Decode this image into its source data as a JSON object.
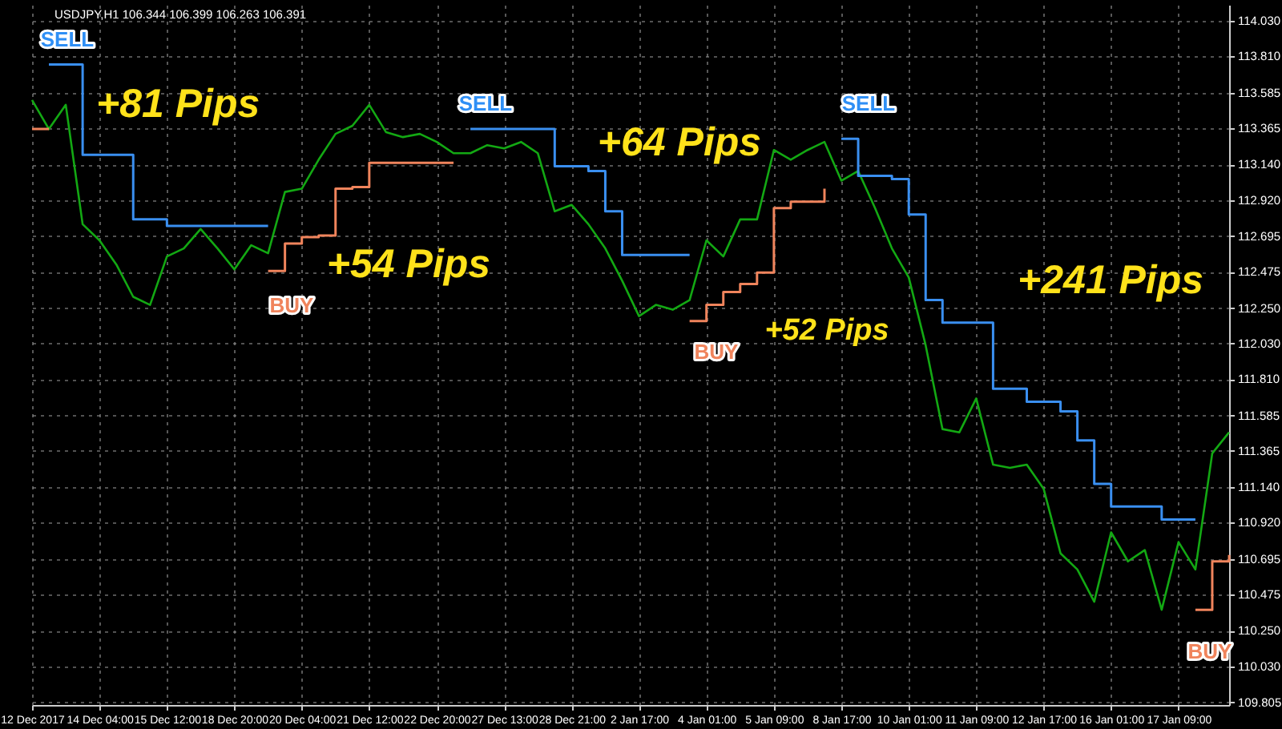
{
  "chart_data": {
    "type": "line",
    "title": "USDJPY,H1 106.344 106.399 106.263 106.391",
    "categories": [
      "12 Dec 2017",
      null,
      null,
      null,
      "14 Dec 04:00",
      null,
      null,
      null,
      "15 Dec 12:00",
      null,
      null,
      null,
      "18 Dec 20:00",
      null,
      null,
      null,
      "20 Dec 04:00",
      null,
      null,
      null,
      "21 Dec 12:00",
      null,
      null,
      null,
      "22 Dec 20:00",
      null,
      null,
      null,
      "27 Dec 13:00",
      null,
      null,
      null,
      "28 Dec 21:00",
      null,
      null,
      null,
      "2 Jan 17:00",
      null,
      null,
      null,
      "4 Jan 01:00",
      null,
      null,
      null,
      "5 Jan 09:00",
      null,
      null,
      null,
      "8 Jan 17:00",
      null,
      null,
      null,
      "10 Jan 01:00",
      null,
      null,
      null,
      "11 Jan 09:00",
      null,
      null,
      null,
      "12 Jan 17:00",
      null,
      null,
      null,
      "16 Jan 01:00",
      null,
      null,
      null,
      "17 Jan 09:00",
      null,
      null,
      null
    ],
    "series": [
      {
        "type": "line",
        "color": "#13a813",
        "values": [
          113.54,
          113.36,
          113.51,
          112.77,
          112.67,
          112.52,
          112.32,
          112.27,
          112.57,
          112.62,
          112.74,
          112.62,
          112.49,
          112.64,
          112.59,
          112.97,
          112.99,
          113.17,
          113.33,
          113.38,
          113.51,
          113.34,
          113.31,
          113.33,
          113.28,
          113.21,
          113.21,
          113.26,
          113.24,
          113.28,
          113.21,
          112.85,
          112.89,
          112.77,
          112.62,
          112.42,
          112.2,
          112.27,
          112.24,
          112.3,
          112.67,
          112.57,
          112.8,
          112.8,
          113.23,
          113.17,
          113.23,
          113.28,
          113.04,
          113.1,
          112.87,
          112.62,
          112.44,
          112.02,
          111.5,
          111.48,
          111.69,
          111.28,
          111.26,
          111.28,
          111.13,
          110.73,
          110.63,
          110.43,
          110.86,
          110.68,
          110.75,
          110.38,
          110.8,
          110.63,
          111.35,
          111.48
        ]
      },
      {
        "type": "step",
        "color": "#3a8ff0",
        "values": [
          null,
          113.76,
          113.76,
          113.2,
          113.2,
          113.2,
          112.8,
          112.8,
          112.76,
          112.76,
          112.76,
          112.76,
          112.76,
          112.76,
          112.76,
          null,
          null,
          null,
          null,
          null,
          null,
          null,
          null,
          null,
          null,
          null,
          113.36,
          113.36,
          113.36,
          113.36,
          113.36,
          113.13,
          113.13,
          113.1,
          112.85,
          112.58,
          112.58,
          112.58,
          112.58,
          112.58,
          null,
          null,
          null,
          null,
          null,
          null,
          null,
          null,
          113.3,
          113.07,
          113.07,
          113.05,
          112.83,
          112.3,
          112.16,
          112.16,
          112.16,
          111.75,
          111.75,
          111.67,
          111.67,
          111.61,
          111.43,
          111.16,
          111.02,
          111.02,
          111.02,
          110.94,
          110.94,
          110.94,
          null,
          null
        ]
      },
      {
        "type": "step",
        "color": "#f0845c",
        "values": [
          113.36,
          113.36,
          null,
          null,
          null,
          null,
          null,
          null,
          null,
          null,
          null,
          null,
          null,
          null,
          112.48,
          112.65,
          112.69,
          112.7,
          112.99,
          113.0,
          113.15,
          113.15,
          113.15,
          113.15,
          113.15,
          113.15,
          null,
          null,
          null,
          null,
          null,
          null,
          null,
          null,
          null,
          null,
          null,
          null,
          null,
          112.17,
          112.27,
          112.35,
          112.4,
          112.47,
          112.87,
          112.91,
          112.91,
          112.99,
          null,
          null,
          null,
          null,
          null,
          null,
          null,
          null,
          null,
          null,
          null,
          null,
          null,
          null,
          null,
          null,
          null,
          null,
          null,
          null,
          null,
          110.38,
          110.68,
          110.72
        ]
      }
    ],
    "ylim": [
      109.79,
      114.13
    ],
    "yticks": [
      {
        "value": 109.805,
        "label": "109.805"
      },
      {
        "value": 110.03,
        "label": "110.030"
      },
      {
        "value": 110.25,
        "label": "110.250"
      },
      {
        "value": 110.475,
        "label": "110.475"
      },
      {
        "value": 110.695,
        "label": "110.695"
      },
      {
        "value": 110.92,
        "label": "110.920"
      },
      {
        "value": 111.14,
        "label": "111.140"
      },
      {
        "value": 111.365,
        "label": "111.365"
      },
      {
        "value": 111.585,
        "label": "111.585"
      },
      {
        "value": 111.81,
        "label": "111.810"
      },
      {
        "value": 112.03,
        "label": "112.030"
      },
      {
        "value": 112.25,
        "label": "112.250"
      },
      {
        "value": 112.475,
        "label": "112.475"
      },
      {
        "value": 112.695,
        "label": "112.695"
      },
      {
        "value": 112.92,
        "label": "112.920"
      },
      {
        "value": 113.14,
        "label": "113.140"
      },
      {
        "value": 113.365,
        "label": "113.365"
      },
      {
        "value": 113.585,
        "label": "113.585"
      },
      {
        "value": 113.81,
        "label": "113.810"
      },
      {
        "value": 114.03,
        "label": "114.030"
      }
    ],
    "grid": true,
    "annotations": [
      "SELL",
      "+81 Pips",
      "+54 Pips",
      "BUY",
      "SELL",
      "+64 Pips",
      "+52 Pips",
      "BUY",
      "SELL",
      "+241 Pips",
      "BUY"
    ]
  }
}
